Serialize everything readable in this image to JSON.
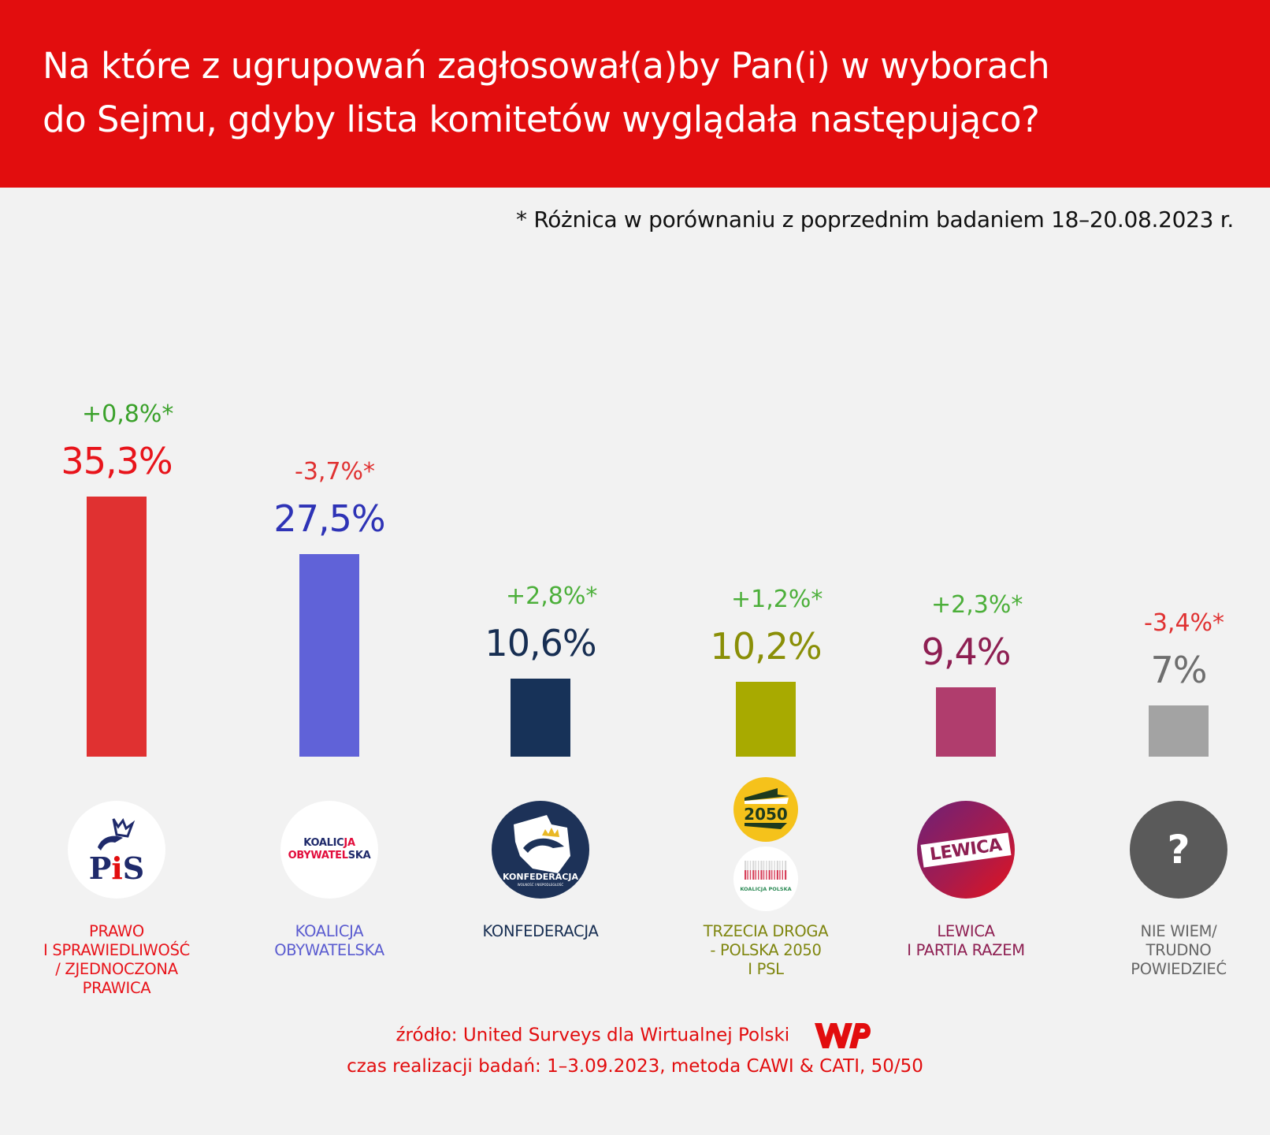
{
  "header": {
    "title_line1": "Na które z ugrupowań zagłosował(a)by Pan(i) w wyborach",
    "title_line2": "do Sejmu, gdyby lista komitetów wyglądała następująco?"
  },
  "note": "* Różnica w porównaniu z poprzednim badaniem 18–20.08.2023 r.",
  "chart_data": {
    "type": "bar",
    "title": "Na które z ugrupowań zagłosował(a)by Pan(i) w wyborach do Sejmu, gdyby lista komitetów wyglądała następująco?",
    "ylim": [
      0,
      35.3
    ],
    "grid": false,
    "categories": [
      "PRAWO I SPRAWIEDLIWOŚĆ / ZJEDNOCZONA PRAWICA",
      "KOALICJA OBYWATELSKA",
      "KONFEDERACJA",
      "TRZECIA DROGA - POLSKA 2050 I PSL",
      "LEWICA I PARTIA RAZEM",
      "NIE WIEM/ TRUDNO POWIEDZIEĆ"
    ],
    "values": [
      35.3,
      27.5,
      10.6,
      10.2,
      9.4,
      7
    ],
    "changes": [
      0.8,
      -3.7,
      2.8,
      1.2,
      2.3,
      -3.4
    ],
    "bars": [
      {
        "value": 35.3,
        "value_label": "35,3%",
        "delta_label": "+0,8%*",
        "delta_color": "#3aa12a",
        "value_color": "#e8141b",
        "bar_color": "#e03131",
        "label_lines": [
          "PRAWO",
          "I SPRAWIEDLIWOŚĆ",
          "/ ZJEDNOCZONA",
          "PRAWICA"
        ],
        "label_color": "#e8141b",
        "logo": "pis-logo",
        "logo_text": [
          "PiS"
        ]
      },
      {
        "value": 27.5,
        "value_label": "27,5%",
        "delta_label": "-3,7%*",
        "delta_color": "#e03131",
        "value_color": "#2e33b6",
        "bar_color": "#6062d8",
        "label_lines": [
          "KOALICJA",
          "OBYWATELSKA"
        ],
        "label_color": "#5b5cd0",
        "logo": "ko-logo",
        "logo_text": [
          "KOALICJA",
          "OBYWATELSKA"
        ]
      },
      {
        "value": 10.6,
        "value_label": "10,6%",
        "delta_label": "+2,8%*",
        "delta_color": "#4caf3a",
        "value_color": "#172e52",
        "bar_color": "#173258",
        "label_lines": [
          "KONFEDERACJA"
        ],
        "label_color": "#172e52",
        "logo": "konfederacja-logo",
        "logo_text": [
          "KONFEDERACJA",
          "WOLNOŚĆ I NIEPODLEGŁOŚĆ"
        ]
      },
      {
        "value": 10.2,
        "value_label": "10,2%",
        "delta_label": "+1,2%*",
        "delta_color": "#4caf3a",
        "value_color": "#8a8f07",
        "bar_color": "#a8aa00",
        "label_lines": [
          "TRZECIA DROGA",
          "- POLSKA 2050",
          "I PSL"
        ],
        "label_color": "#7f860f",
        "logo": "trzecia-droga-logo",
        "logo_text": [
          "2050",
          "KOALICJA POLSKA"
        ]
      },
      {
        "value": 9.4,
        "value_label": "9,4%",
        "delta_label": "+2,3%*",
        "delta_color": "#4caf3a",
        "value_color": "#8e1f52",
        "bar_color": "#b03d6d",
        "label_lines": [
          "LEWICA",
          "I PARTIA RAZEM"
        ],
        "label_color": "#8e1f52",
        "logo": "lewica-logo",
        "logo_text": [
          "LEWICA"
        ]
      },
      {
        "value": 7,
        "value_label": "7%",
        "delta_label": "-3,4%*",
        "delta_color": "#e03131",
        "value_color": "#6e6e6e",
        "bar_color": "#a3a3a3",
        "label_lines": [
          "NIE WIEM/",
          "TRUDNO",
          "POWIEDZIEĆ"
        ],
        "label_color": "#666666",
        "logo": "question-logo",
        "logo_text": [
          "?"
        ]
      }
    ]
  },
  "footer": {
    "source": "źródło: United Surveys dla Wirtualnej Polski",
    "method": "czas realizacji badań: 1–3.09.2023, metoda CAWI & CATI, 50/50",
    "logo_text": "WP"
  },
  "colors": {
    "header_bg": "#e20d0e",
    "page_bg": "#f2f2f2"
  }
}
